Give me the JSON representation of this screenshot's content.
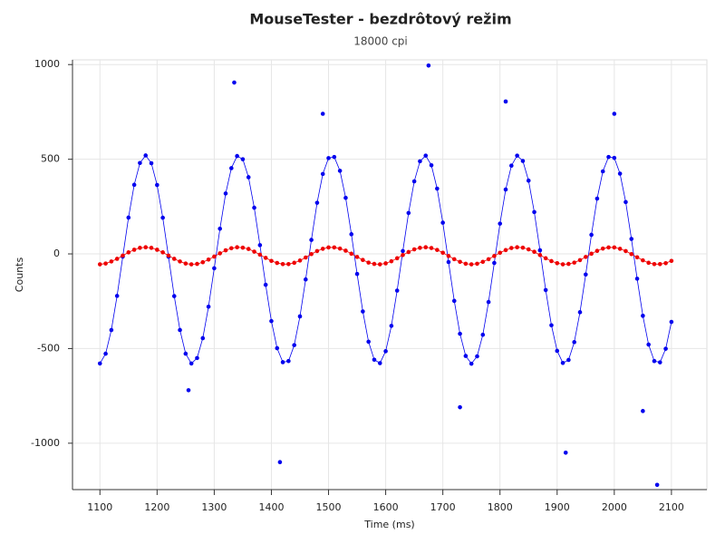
{
  "chart_data": {
    "type": "scatter",
    "title": "MouseTester - bezdrôtový režim",
    "subtitle": "18000 cpi",
    "x_label": "Time (ms)",
    "y_label": "Counts",
    "xlim": [
      1052,
      2162
    ],
    "ylim": [
      -1245,
      1025
    ],
    "xticks": [
      1100,
      1200,
      1300,
      1400,
      1500,
      1600,
      1700,
      1800,
      1900,
      2000,
      2100
    ],
    "yticks": [
      -1000,
      -500,
      0,
      500,
      1000
    ],
    "grid": true,
    "x": [
      1100,
      1110,
      1120,
      1130,
      1140,
      1150,
      1160,
      1170,
      1180,
      1190,
      1200,
      1210,
      1220,
      1230,
      1240,
      1250,
      1260,
      1270,
      1280,
      1290,
      1300,
      1310,
      1320,
      1330,
      1340,
      1350,
      1360,
      1370,
      1380,
      1390,
      1400,
      1410,
      1420,
      1430,
      1440,
      1450,
      1460,
      1470,
      1480,
      1490,
      1500,
      1510,
      1520,
      1530,
      1540,
      1550,
      1560,
      1570,
      1580,
      1590,
      1600,
      1610,
      1620,
      1630,
      1640,
      1650,
      1660,
      1670,
      1680,
      1690,
      1700,
      1710,
      1720,
      1730,
      1740,
      1750,
      1760,
      1770,
      1780,
      1790,
      1800,
      1810,
      1820,
      1830,
      1840,
      1850,
      1860,
      1870,
      1880,
      1890,
      1900,
      1910,
      1920,
      1930,
      1940,
      1950,
      1960,
      1970,
      1980,
      1990,
      2000,
      2010,
      2020,
      2030,
      2040,
      2050,
      2060,
      2070,
      2080,
      2090,
      2100
    ],
    "series": [
      {
        "color": "#0000ee",
        "line": true,
        "values": [
          -579,
          -527,
          -402,
          -222,
          -14,
          192,
          365,
          480,
          520,
          479,
          364,
          191,
          -15,
          -223,
          -402,
          -527,
          -579,
          -550,
          -445,
          -279,
          -76,
          133,
          319,
          453,
          517,
          500,
          405,
          244,
          46,
          -163,
          -355,
          -498,
          -572,
          -566,
          -482,
          -330,
          -135,
          74,
          270,
          422,
          506,
          512,
          439,
          296,
          104,
          -106,
          -304,
          -464,
          -559,
          -577,
          -514,
          -380,
          -194,
          15,
          216,
          383,
          489,
          519,
          468,
          345,
          165,
          -43,
          -248,
          -422,
          -539,
          -580,
          -541,
          -427,
          -254,
          -48,
          160,
          340,
          466,
          519,
          491,
          387,
          221,
          19,
          -191,
          -377,
          -512,
          -576,
          -560,
          -466,
          -308,
          -109,
          101,
          292,
          436,
          512,
          507,
          424,
          274,
          79,
          -131,
          -327,
          -479,
          -566,
          -573,
          -501,
          -359
        ]
      },
      {
        "color": "#0000ee",
        "line": false,
        "x": [
          1335,
          1490,
          1675,
          1810,
          2000,
          1255,
          1415,
          1730,
          1915,
          2050,
          2075
        ],
        "values": [
          905,
          740,
          995,
          805,
          740,
          -720,
          -1100,
          -810,
          -1050,
          -830,
          -1220
        ]
      },
      {
        "color": "#ee0000",
        "line": true,
        "values": [
          -55,
          -51,
          -40,
          -26,
          -9,
          8,
          22,
          32,
          35,
          32,
          22,
          8,
          -9,
          -26,
          -40,
          -51,
          -55,
          -53,
          -44,
          -30,
          -14,
          3,
          19,
          30,
          35,
          33,
          26,
          12,
          -4,
          -21,
          -37,
          -48,
          -54,
          -54,
          -47,
          -35,
          -19,
          -1,
          15,
          27,
          34,
          34,
          28,
          17,
          1,
          -16,
          -32,
          -46,
          -53,
          -55,
          -50,
          -39,
          -23,
          -6,
          10,
          24,
          32,
          35,
          31,
          21,
          6,
          -11,
          -28,
          -42,
          -52,
          -55,
          -52,
          -42,
          -28,
          -11,
          6,
          20,
          31,
          35,
          33,
          24,
          11,
          -6,
          -23,
          -38,
          -49,
          -55,
          -53,
          -46,
          -33,
          -16,
          1,
          16,
          28,
          34,
          34,
          27,
          15,
          -1,
          -18,
          -34,
          -47,
          -54,
          -54,
          -49,
          -37
        ]
      }
    ]
  }
}
